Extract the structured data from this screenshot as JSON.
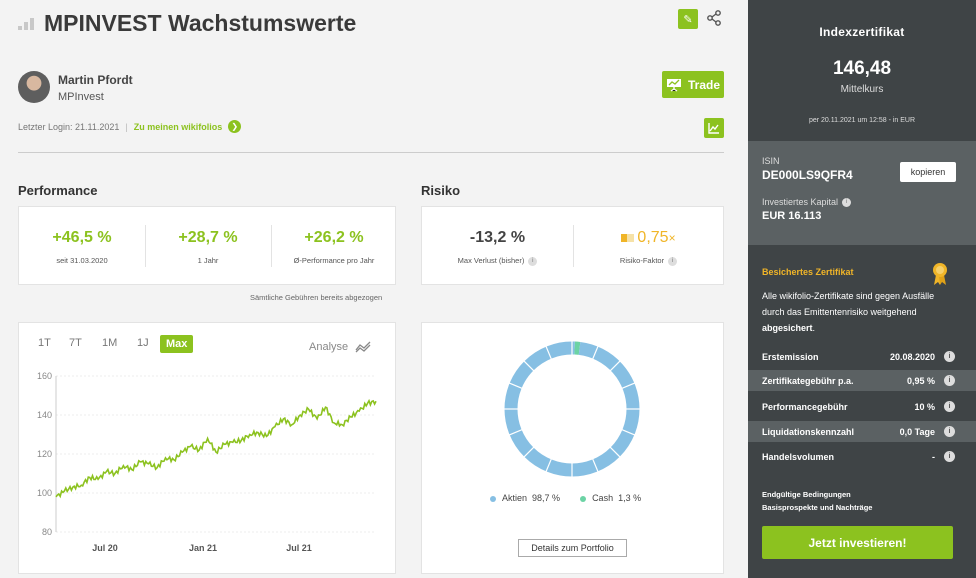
{
  "header": {
    "title": "MPINVEST Wachstumswerte"
  },
  "author": {
    "name": "Martin Pfordt",
    "company": "MPInvest"
  },
  "trade": {
    "label": "Trade"
  },
  "login": {
    "text": "Letzter Login: 21.11.2021",
    "sep": "|",
    "link": "Zu meinen wikifolios"
  },
  "performance": {
    "title": "Performance",
    "items": [
      {
        "value": "+46,5 %",
        "label": "seit 31.03.2020"
      },
      {
        "value": "+28,7 %",
        "label": "1 Jahr"
      },
      {
        "value": "+26,2 %",
        "label": "Ø-Performance pro Jahr"
      }
    ],
    "note": "Sämtliche Gebühren bereits abgezogen"
  },
  "risk": {
    "title": "Risiko",
    "max_loss": {
      "value": "-13,2 %",
      "label": "Max Verlust (bisher)"
    },
    "factor": {
      "value": "0,75",
      "suffix": "×",
      "label": "Risiko-Faktor"
    }
  },
  "chart": {
    "tabs": [
      "1T",
      "7T",
      "1M",
      "1J",
      "Max"
    ],
    "active_tab": "Max",
    "analyse_label": "Analyse"
  },
  "chart_data": [
    {
      "type": "line",
      "y_ticks": [
        "160",
        "140",
        "120",
        "100",
        "80"
      ],
      "ylim": [
        80,
        160
      ],
      "x_ticks": [
        "Jul 20",
        "Jan 21",
        "Jul 21"
      ],
      "color": "#8cc21f",
      "series": [
        {
          "values": [
            98,
            101,
            103,
            104,
            108,
            107,
            111,
            110,
            114,
            112,
            116,
            115,
            113,
            118,
            117,
            121,
            124,
            122,
            128,
            121,
            125,
            126,
            127,
            130,
            131,
            129,
            134,
            138,
            135,
            140,
            143,
            138,
            144,
            136,
            135,
            139,
            142,
            146,
            147
          ]
        }
      ]
    },
    {
      "type": "pie",
      "donut": true,
      "categories": [
        "Aktien",
        "Cash"
      ],
      "values": [
        98.7,
        1.3
      ],
      "colors": [
        "#86bfe3",
        "#6cd3a5"
      ]
    }
  ],
  "allocation": {
    "legend": [
      {
        "label": "Aktien",
        "value": "98,7 %",
        "color": "#86bfe3"
      },
      {
        "label": "Cash",
        "value": "1,3 %",
        "color": "#6cd3a5"
      }
    ],
    "details_label": "Details zum Portfolio"
  },
  "sidebar": {
    "heading": "Indexzertifikat",
    "price": "146,48",
    "price_label": "Mittelkurs",
    "price_date": "per 20.11.2021 um 12:58 - in EUR",
    "isin_label": "ISIN",
    "isin": "DE000LS9QFR4",
    "copy_label": "kopieren",
    "capital_label": "Investiertes Kapital",
    "capital": "EUR 16.113",
    "secured_title": "Besichertes Zertifikat",
    "secured_text": "Alle wikifolio-Zertifikate sind gegen Ausfälle durch das Emittentenrisiko weitgehend",
    "secured_bold": "abgesichert",
    "secured_end": ".",
    "rows": [
      {
        "key": "Erstemission",
        "value": "20.08.2020"
      },
      {
        "key": "Zertifikategebühr p.a.",
        "value": "0,95 %"
      },
      {
        "key": "Performancegebühr",
        "value": "10 %"
      },
      {
        "key": "Liquidationskennzahl",
        "value": "0,0 Tage"
      },
      {
        "key": "Handelsvolumen",
        "value": "-"
      }
    ],
    "legal_1": "Endgültige Bedingungen",
    "legal_2": "Basisprospekte und Nachträge",
    "invest_label": "Jetzt investieren!"
  },
  "icons": {
    "accent": "#8cc21f",
    "warning": "#f0b528"
  }
}
